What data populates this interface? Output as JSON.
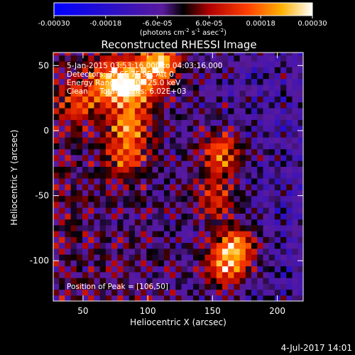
{
  "chart_data": {
    "type": "heatmap",
    "title": "Reconstructed RHESSI Image",
    "xlabel": "Heliocentric X (arcsec)",
    "ylabel": "Heliocentric Y (arcsec)",
    "xlim": [
      27,
      220
    ],
    "ylim": [
      -131,
      60
    ],
    "x_ticks": [
      "50",
      "100",
      "150",
      "200"
    ],
    "x_tick_values": [
      50,
      100,
      150,
      200
    ],
    "y_ticks": [
      "50",
      "0",
      "-50",
      "-100"
    ],
    "y_tick_values": [
      50,
      0,
      -50,
      -100
    ],
    "colorbar": {
      "ticks": [
        "-0.00030",
        "-0.00018",
        "-6.0e-05",
        "6.0e-05",
        "0.00018",
        "0.00030"
      ],
      "tick_values": [
        -0.0003,
        -0.00018,
        -6e-05,
        6e-05,
        0.00018,
        0.0003
      ],
      "range": [
        -0.0003,
        0.0003
      ],
      "units_line1": "(photons cm",
      "units_exp1": "-2",
      "units_mid": " s",
      "units_exp2": "-1",
      "units_mid2": " asec",
      "units_exp3": "-2",
      "units_end": ")"
    },
    "sources": [
      {
        "x": 72,
        "y": 36,
        "peak": 0.00028
      },
      {
        "x": 88,
        "y": 30,
        "peak": 0.00022
      },
      {
        "x": 84,
        "y": 2,
        "peak": 0.0002
      },
      {
        "x": 80,
        "y": -22,
        "peak": 0.00016
      },
      {
        "x": 106,
        "y": 50,
        "peak": 0.0003
      },
      {
        "x": 155,
        "y": -20,
        "peak": 0.00022
      },
      {
        "x": 150,
        "y": -55,
        "peak": 0.00016
      },
      {
        "x": 165,
        "y": -92,
        "peak": 0.00025
      },
      {
        "x": 158,
        "y": -108,
        "peak": 0.00018
      },
      {
        "x": 45,
        "y": 20,
        "peak": 0.00014
      }
    ],
    "annotations": [
      "5-Jan-2015 03:53:16.000 to 04:03:16.000",
      "Detectors: 3F 6F 7F 9F, Att 0",
      "Energy Range: 12.0 - 25.0 keV",
      "Clean     Total counts: 6.02E+03"
    ],
    "peak_label": "Position of Peak = [106,50]",
    "timestamp": "4-Jul-2017 14:01"
  }
}
